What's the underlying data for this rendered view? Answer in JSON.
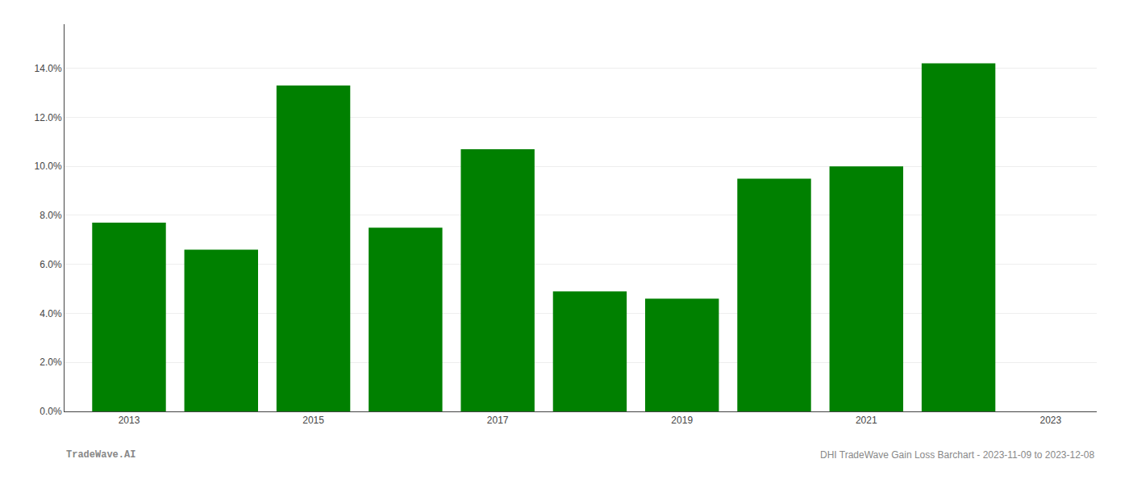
{
  "chart_data": {
    "type": "bar",
    "x": [
      2013,
      2014,
      2015,
      2016,
      2017,
      2018,
      2019,
      2020,
      2021,
      2022
    ],
    "values": [
      0.077,
      0.066,
      0.133,
      0.075,
      0.107,
      0.049,
      0.046,
      0.095,
      0.1,
      0.142
    ],
    "color": "#008000",
    "xlim": [
      2012.3,
      2023.5
    ],
    "xticks": [
      2013,
      2015,
      2017,
      2019,
      2021,
      2023
    ],
    "ylim": [
      0,
      0.158
    ],
    "yticks": [
      {
        "value": 0.0,
        "label": "0.0%"
      },
      {
        "value": 0.02,
        "label": "2.0%"
      },
      {
        "value": 0.04,
        "label": "4.0%"
      },
      {
        "value": 0.06,
        "label": "6.0%"
      },
      {
        "value": 0.08,
        "label": "8.0%"
      },
      {
        "value": 0.1,
        "label": "10.0%"
      },
      {
        "value": 0.12,
        "label": "12.0%"
      },
      {
        "value": 0.14,
        "label": "14.0%"
      }
    ],
    "grid": "y",
    "annotations": [
      "TradeWave.AI",
      "DHI TradeWave Gain Loss Barchart - 2023-11-09 to 2023-12-08"
    ]
  }
}
